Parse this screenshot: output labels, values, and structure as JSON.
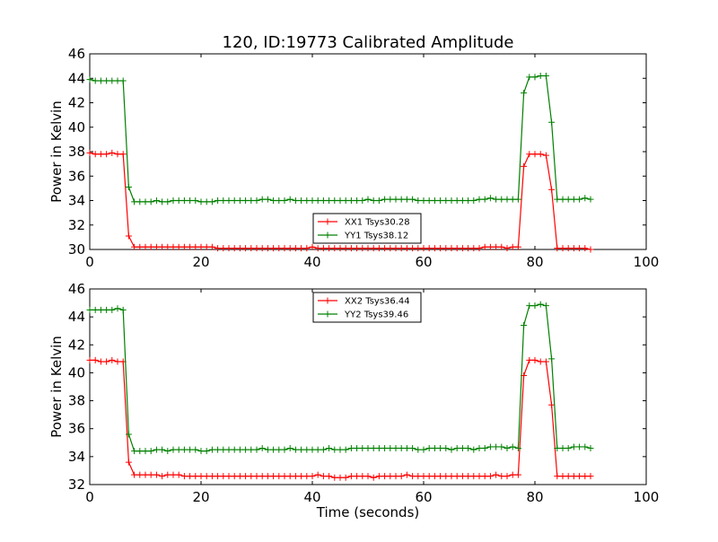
{
  "figure": {
    "title": "120, ID:19773 Calibrated Amplitude",
    "xlabel": "Time (seconds)"
  },
  "chart_data": [
    {
      "type": "line",
      "title": "120, ID:19773 Calibrated Amplitude",
      "xlabel": "",
      "ylabel": "Power in Kelvin",
      "xlim": [
        0,
        100
      ],
      "ylim": [
        30,
        46
      ],
      "xticks": [
        0,
        20,
        40,
        60,
        80,
        100
      ],
      "yticks": [
        30,
        32,
        34,
        36,
        38,
        40,
        42,
        44,
        46
      ],
      "grid": false,
      "legend_position": "lower-center",
      "series": [
        {
          "name": "XX1 Tsys30.28",
          "color": "#ff0000",
          "marker": "+",
          "x": [
            0,
            1,
            2,
            3,
            4,
            5,
            6,
            7,
            8,
            9,
            10,
            11,
            12,
            13,
            14,
            15,
            16,
            17,
            18,
            19,
            20,
            21,
            22,
            23,
            24,
            25,
            26,
            27,
            28,
            29,
            30,
            31,
            32,
            33,
            34,
            35,
            36,
            37,
            38,
            39,
            40,
            41,
            42,
            43,
            44,
            45,
            46,
            47,
            48,
            49,
            50,
            51,
            52,
            53,
            54,
            55,
            56,
            57,
            58,
            59,
            60,
            61,
            62,
            63,
            64,
            65,
            66,
            67,
            68,
            69,
            70,
            71,
            72,
            73,
            74,
            75,
            76,
            77,
            78,
            79,
            80,
            81,
            82,
            83,
            84,
            85,
            86,
            87,
            88,
            89,
            90
          ],
          "y": [
            37.9,
            37.8,
            37.8,
            37.8,
            37.9,
            37.8,
            37.8,
            31.1,
            30.2,
            30.2,
            30.2,
            30.2,
            30.2,
            30.2,
            30.2,
            30.2,
            30.2,
            30.2,
            30.2,
            30.2,
            30.2,
            30.2,
            30.2,
            30.1,
            30.1,
            30.1,
            30.1,
            30.1,
            30.1,
            30.1,
            30.1,
            30.1,
            30.1,
            30.1,
            30.1,
            30.1,
            30.1,
            30.1,
            30.1,
            30.1,
            30.2,
            30.1,
            30.1,
            30.1,
            30.1,
            30.1,
            30.1,
            30.1,
            30.1,
            30.1,
            30.1,
            30.1,
            30.1,
            30.1,
            30.1,
            30.1,
            30.1,
            30.1,
            30.1,
            30.1,
            30.1,
            30.1,
            30.1,
            30.1,
            30.1,
            30.1,
            30.1,
            30.1,
            30.1,
            30.1,
            30.1,
            30.2,
            30.2,
            30.2,
            30.2,
            30.1,
            30.2,
            30.2,
            36.8,
            37.8,
            37.8,
            37.8,
            37.7,
            34.9,
            30.1,
            30.1,
            30.1,
            30.1,
            30.1,
            30.1,
            30.0
          ]
        },
        {
          "name": "YY1 Tsys38.12",
          "color": "#008000",
          "marker": "+",
          "x": [
            0,
            1,
            2,
            3,
            4,
            5,
            6,
            7,
            8,
            9,
            10,
            11,
            12,
            13,
            14,
            15,
            16,
            17,
            18,
            19,
            20,
            21,
            22,
            23,
            24,
            25,
            26,
            27,
            28,
            29,
            30,
            31,
            32,
            33,
            34,
            35,
            36,
            37,
            38,
            39,
            40,
            41,
            42,
            43,
            44,
            45,
            46,
            47,
            48,
            49,
            50,
            51,
            52,
            53,
            54,
            55,
            56,
            57,
            58,
            59,
            60,
            61,
            62,
            63,
            64,
            65,
            66,
            67,
            68,
            69,
            70,
            71,
            72,
            73,
            74,
            75,
            76,
            77,
            78,
            79,
            80,
            81,
            82,
            83,
            84,
            85,
            86,
            87,
            88,
            89,
            90
          ],
          "y": [
            43.9,
            43.8,
            43.8,
            43.8,
            43.8,
            43.8,
            43.8,
            35.1,
            33.9,
            33.9,
            33.9,
            33.9,
            34.0,
            33.9,
            33.9,
            34.0,
            34.0,
            34.0,
            34.0,
            34.0,
            33.9,
            33.9,
            33.9,
            34.0,
            34.0,
            34.0,
            34.0,
            34.0,
            34.0,
            34.0,
            34.0,
            34.1,
            34.1,
            34.0,
            34.0,
            34.0,
            34.1,
            34.0,
            34.0,
            34.0,
            34.0,
            34.0,
            34.0,
            34.0,
            34.0,
            34.0,
            34.0,
            34.0,
            34.0,
            34.0,
            34.1,
            34.0,
            34.0,
            34.1,
            34.1,
            34.1,
            34.1,
            34.1,
            34.1,
            34.0,
            34.0,
            34.0,
            34.0,
            34.0,
            34.0,
            34.0,
            34.0,
            34.0,
            34.0,
            34.0,
            34.1,
            34.1,
            34.2,
            34.1,
            34.1,
            34.1,
            34.1,
            34.1,
            42.8,
            44.1,
            44.1,
            44.2,
            44.2,
            40.4,
            34.1,
            34.1,
            34.1,
            34.1,
            34.1,
            34.2,
            34.1
          ]
        }
      ]
    },
    {
      "type": "line",
      "title": "",
      "xlabel": "Time (seconds)",
      "ylabel": "Power in Kelvin",
      "xlim": [
        0,
        100
      ],
      "ylim": [
        32,
        46
      ],
      "xticks": [
        0,
        20,
        40,
        60,
        80,
        100
      ],
      "yticks": [
        32,
        34,
        36,
        38,
        40,
        42,
        44,
        46
      ],
      "grid": false,
      "legend_position": "upper-center",
      "series": [
        {
          "name": "XX2 Tsys36.44",
          "color": "#ff0000",
          "marker": "+",
          "x": [
            0,
            1,
            2,
            3,
            4,
            5,
            6,
            7,
            8,
            9,
            10,
            11,
            12,
            13,
            14,
            15,
            16,
            17,
            18,
            19,
            20,
            21,
            22,
            23,
            24,
            25,
            26,
            27,
            28,
            29,
            30,
            31,
            32,
            33,
            34,
            35,
            36,
            37,
            38,
            39,
            40,
            41,
            42,
            43,
            44,
            45,
            46,
            47,
            48,
            49,
            50,
            51,
            52,
            53,
            54,
            55,
            56,
            57,
            58,
            59,
            60,
            61,
            62,
            63,
            64,
            65,
            66,
            67,
            68,
            69,
            70,
            71,
            72,
            73,
            74,
            75,
            76,
            77,
            78,
            79,
            80,
            81,
            82,
            83,
            84,
            85,
            86,
            87,
            88,
            89,
            90
          ],
          "y": [
            40.9,
            40.9,
            40.8,
            40.8,
            40.9,
            40.8,
            40.8,
            33.6,
            32.7,
            32.7,
            32.7,
            32.7,
            32.7,
            32.6,
            32.7,
            32.7,
            32.7,
            32.6,
            32.6,
            32.6,
            32.6,
            32.6,
            32.6,
            32.6,
            32.6,
            32.6,
            32.6,
            32.6,
            32.6,
            32.6,
            32.6,
            32.6,
            32.6,
            32.6,
            32.6,
            32.6,
            32.6,
            32.6,
            32.6,
            32.6,
            32.6,
            32.7,
            32.6,
            32.6,
            32.5,
            32.5,
            32.5,
            32.6,
            32.6,
            32.6,
            32.6,
            32.5,
            32.6,
            32.6,
            32.6,
            32.6,
            32.6,
            32.7,
            32.6,
            32.6,
            32.6,
            32.6,
            32.6,
            32.6,
            32.6,
            32.6,
            32.6,
            32.6,
            32.6,
            32.6,
            32.6,
            32.6,
            32.6,
            32.7,
            32.6,
            32.6,
            32.7,
            32.7,
            39.8,
            40.9,
            40.9,
            40.8,
            40.8,
            37.7,
            32.6,
            32.6,
            32.6,
            32.6,
            32.6,
            32.6,
            32.6
          ]
        },
        {
          "name": "YY2 Tsys39.46",
          "color": "#008000",
          "marker": "+",
          "x": [
            0,
            1,
            2,
            3,
            4,
            5,
            6,
            7,
            8,
            9,
            10,
            11,
            12,
            13,
            14,
            15,
            16,
            17,
            18,
            19,
            20,
            21,
            22,
            23,
            24,
            25,
            26,
            27,
            28,
            29,
            30,
            31,
            32,
            33,
            34,
            35,
            36,
            37,
            38,
            39,
            40,
            41,
            42,
            43,
            44,
            45,
            46,
            47,
            48,
            49,
            50,
            51,
            52,
            53,
            54,
            55,
            56,
            57,
            58,
            59,
            60,
            61,
            62,
            63,
            64,
            65,
            66,
            67,
            68,
            69,
            70,
            71,
            72,
            73,
            74,
            75,
            76,
            77,
            78,
            79,
            80,
            81,
            82,
            83,
            84,
            85,
            86,
            87,
            88,
            89,
            90
          ],
          "y": [
            44.5,
            44.5,
            44.5,
            44.5,
            44.5,
            44.6,
            44.5,
            35.6,
            34.4,
            34.4,
            34.4,
            34.4,
            34.5,
            34.5,
            34.4,
            34.5,
            34.5,
            34.5,
            34.5,
            34.5,
            34.4,
            34.4,
            34.5,
            34.5,
            34.5,
            34.5,
            34.5,
            34.5,
            34.5,
            34.5,
            34.5,
            34.6,
            34.5,
            34.5,
            34.5,
            34.5,
            34.6,
            34.5,
            34.5,
            34.5,
            34.5,
            34.5,
            34.5,
            34.6,
            34.5,
            34.5,
            34.5,
            34.6,
            34.6,
            34.6,
            34.6,
            34.6,
            34.6,
            34.6,
            34.6,
            34.6,
            34.6,
            34.6,
            34.6,
            34.5,
            34.5,
            34.6,
            34.6,
            34.6,
            34.6,
            34.5,
            34.6,
            34.6,
            34.6,
            34.5,
            34.6,
            34.6,
            34.7,
            34.7,
            34.7,
            34.6,
            34.7,
            34.6,
            43.4,
            44.8,
            44.8,
            44.9,
            44.8,
            41.0,
            34.6,
            34.6,
            34.6,
            34.7,
            34.7,
            34.7,
            34.6
          ]
        }
      ]
    }
  ]
}
